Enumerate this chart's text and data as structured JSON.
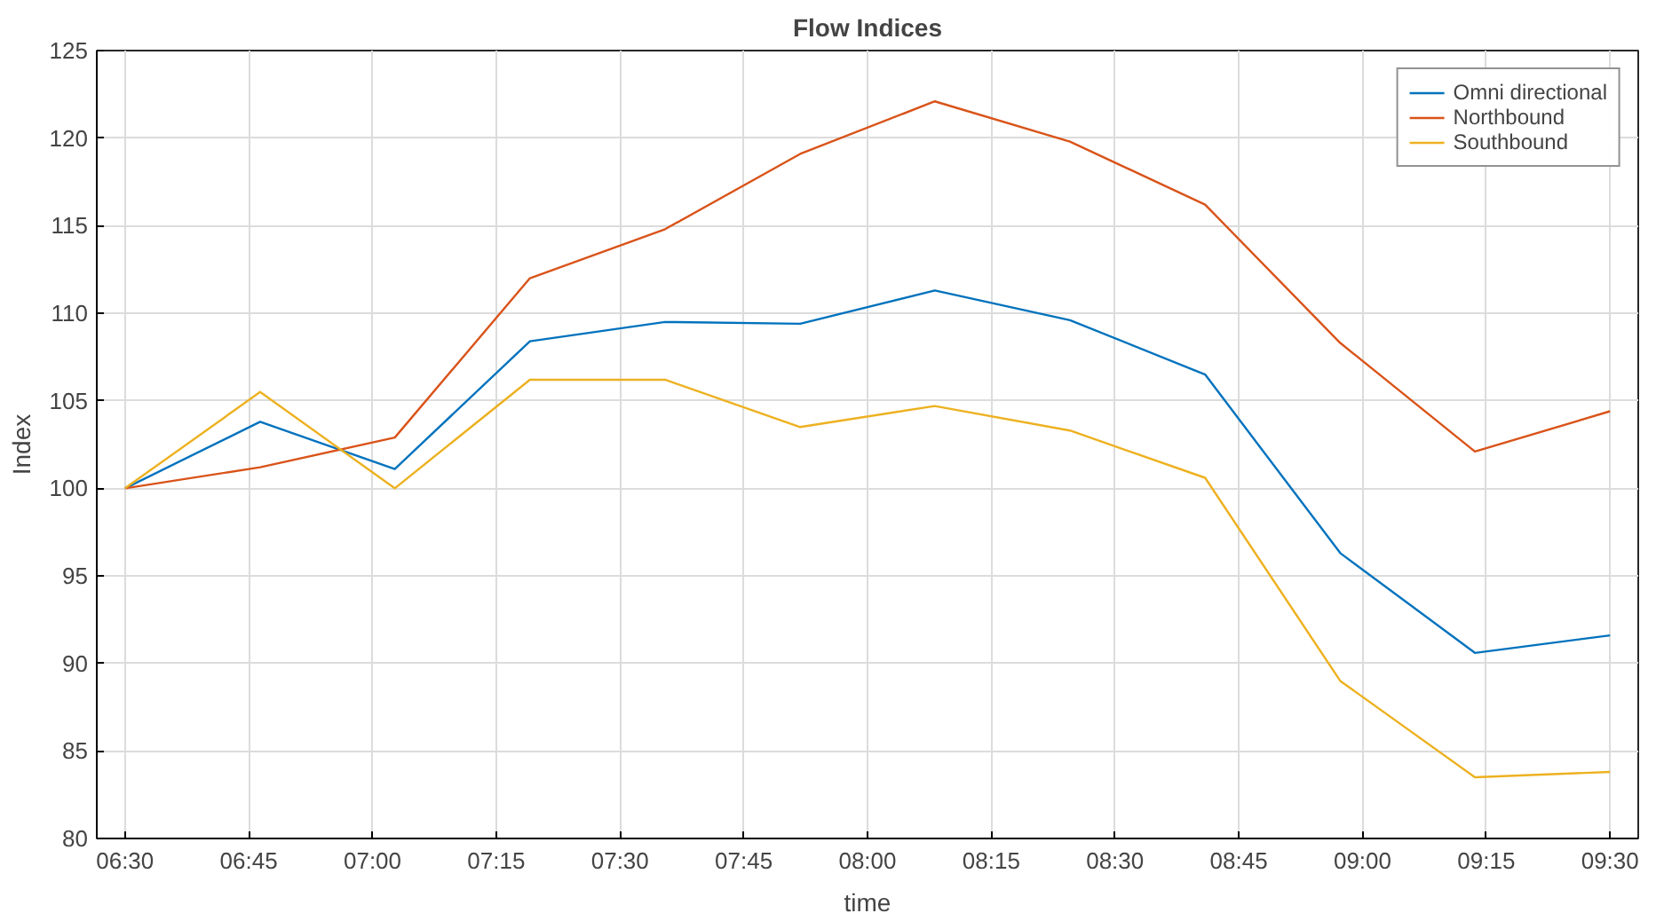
{
  "chart_data": {
    "type": "line",
    "title": "Flow Indices",
    "xlabel": "time",
    "ylabel": "Index",
    "x": [
      6.5,
      6.773,
      7.045,
      7.318,
      7.591,
      7.864,
      8.136,
      8.409,
      8.682,
      8.955,
      9.227,
      9.5
    ],
    "series": [
      {
        "name": "Omni directional",
        "color": "#0072bd",
        "values": [
          100,
          103.8,
          101.1,
          108.4,
          109.5,
          109.4,
          111.3,
          109.6,
          106.5,
          96.3,
          90.6,
          91.6
        ]
      },
      {
        "name": "Northbound",
        "color": "#d95319",
        "values": [
          100,
          101.2,
          102.9,
          112.0,
          114.8,
          119.1,
          122.1,
          119.8,
          116.2,
          108.3,
          102.1,
          104.4
        ]
      },
      {
        "name": "Southbound",
        "color": "#edb120",
        "values": [
          100,
          105.5,
          100.0,
          106.2,
          106.2,
          103.5,
          104.7,
          103.3,
          100.6,
          89.0,
          83.5,
          83.8
        ]
      }
    ],
    "xlim": [
      6.443,
      9.557
    ],
    "xticks": [
      {
        "value": 6.5,
        "label": "06:30"
      },
      {
        "value": 6.75,
        "label": "06:45"
      },
      {
        "value": 7.0,
        "label": "07:00"
      },
      {
        "value": 7.25,
        "label": "07:15"
      },
      {
        "value": 7.5,
        "label": "07:30"
      },
      {
        "value": 7.75,
        "label": "07:45"
      },
      {
        "value": 8.0,
        "label": "08:00"
      },
      {
        "value": 8.25,
        "label": "08:15"
      },
      {
        "value": 8.5,
        "label": "08:30"
      },
      {
        "value": 8.75,
        "label": "08:45"
      },
      {
        "value": 9.0,
        "label": "09:00"
      },
      {
        "value": 9.25,
        "label": "09:15"
      },
      {
        "value": 9.5,
        "label": "09:30"
      }
    ],
    "ylim": [
      80,
      125
    ],
    "yticks": [
      80,
      85,
      90,
      95,
      100,
      105,
      110,
      115,
      120,
      125
    ],
    "grid": true,
    "legend": "top right",
    "marker": "none",
    "line_style": "solid"
  }
}
